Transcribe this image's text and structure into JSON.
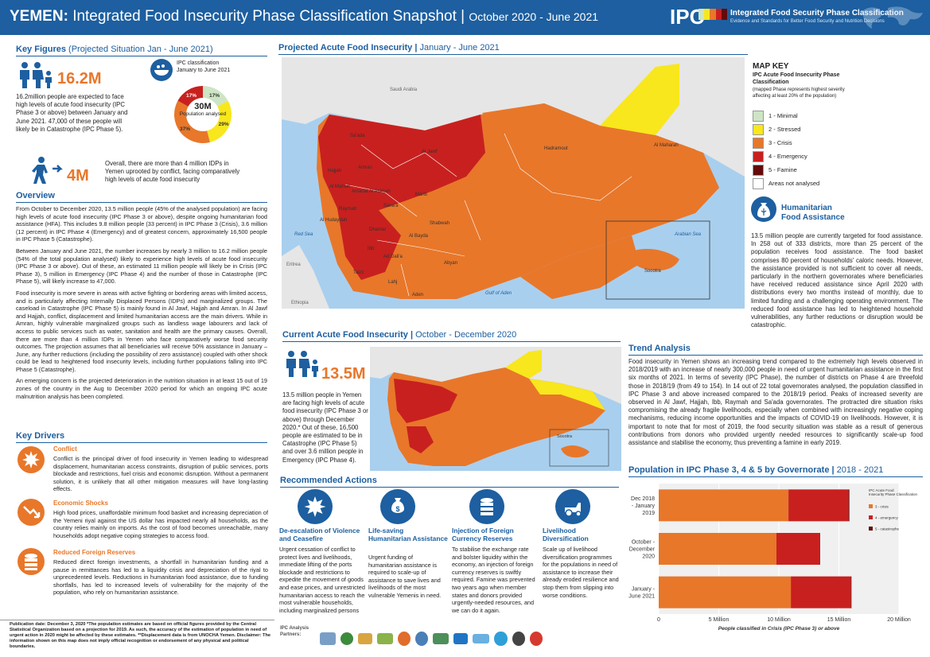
{
  "header": {
    "country": "YEMEN:",
    "title": "Integrated Food Insecurity Phase Classification Snapshot",
    "period": "October 2020 - June 2021",
    "ipc_logo": "IPC",
    "ipc_name": "Integrated Food Security Phase Classification",
    "ipc_tagline": "Evidence and Standards for Better Food Security and Nutrition Decisions"
  },
  "key_figures": {
    "heading": "Key Figures",
    "heading_sub": "(Projected Situation Jan - June 2021)",
    "people_icon": "people-family-icon",
    "people_number": "16.2M",
    "people_text": "16.2million people are expected to face high levels of acute food insecurity (IPC Phase 3 or above) between January and June 2021. 47,000 of these people will likely be in Catastrophe (IPC Phase 5).",
    "donut_caption": "IPC classification January to June 2021",
    "donut_center_value": "30M",
    "donut_center_label": "Population analysed",
    "donut": [
      {
        "label": "17%",
        "value": 17,
        "color": "#cde5c4"
      },
      {
        "label": "29%",
        "value": 29,
        "color": "#f8e71c"
      },
      {
        "label": "37%",
        "value": 37,
        "color": "#e8772a"
      },
      {
        "label": "17%",
        "value": 17,
        "color": "#c8201f"
      }
    ],
    "idp_icon": "displaced-person-icon",
    "idp_number": "4M",
    "idp_text": "Overall, there are more than 4 million IDPs in Yemen uprooted by conflict, facing comparatively high levels of acute food insecurity"
  },
  "overview": {
    "heading": "Overview",
    "p1": "From October to December 2020, 13.5 million people (45% of the analysed population) are facing high levels of acute food insecurity (IPC Phase 3 or above), despite ongoing humanitarian food assistance (HFA). This includes 9.8 million people (33 percent) in IPC Phase 3 (Crisis), 3.6 million (12 percent) in IPC Phase 4 (Emergency) and of greatest concern, approximately 16,500 people in IPC Phase 5 (Catastrophe).",
    "p2": "Between January and June 2021, the number increases by nearly 3 million to 16.2 million people (54% of the total population analysed) likely to experience high levels of acute food insecurity (IPC Phase 3 or above). Out of these, an estimated 11 million people will likely be in Crisis (IPC Phase 3), 5 million in Emergency (IPC Phase 4) and the number of those in Catastrophe (IPC Phase 5), will likely increase to 47,000.",
    "p3": "Food insecurity is more severe in areas with active fighting or bordering areas with limited access, and is particularly affecting Internally Displaced Persons (IDPs) and marginalized groups. The caseload in Catastrophe (IPC Phase 5) is mainly found in Al Jawf, Hajjah and Amran. In Al Jawf and Hajjah, conflict, displacement and limited humanitarian access are the main drivers. While in Amran, highly vulnerable marginalized groups such as landless wage labourers and lack of access to public services such as water, sanitation and health are the primary causes. Overall, there are more than 4 million IDPs in Yemen who face comparatively worse food security outcomes. The projection assumes that all beneficiaries will receive 50% assistance in January – June, any further reductions (including the possibility of zero assistance) coupled with other shock could be lead to heightened food insecurity levels, including further populations falling into IPC Phase 5 (Catastrophe).",
    "p4": "An emerging concern is the projected deterioration in the nutrition situation in at least 15 out of 19 zones of the country in the Aug to December 2020 period for which an ongoing IPC acute malnutrition analysis has been completed."
  },
  "drivers": {
    "heading": "Key Drivers",
    "items": [
      {
        "title": "Conflict",
        "icon": "explosion-icon",
        "text": "Conflict is the principal driver of food insecurity in Yemen leading to widespread displacement, humanitarian access constraints, disruption of public services, ports blockade and restrictions, fuel crisis and economic disruption. Without a permanent solution, it is unlikely that all other mitigation measures will have long-lasting effects."
      },
      {
        "title": "Economic Shocks",
        "icon": "trend-down-icon",
        "text": "High food prices, unaffordable minimum food basket and increasing depreciation of the Yemeni riyal against the US dollar has impacted nearly all households, as the country relies mainly on imports. As the cost of food becomes unreachable, many households adopt negative coping strategies to access food."
      },
      {
        "title": "Reduced Foreign Reserves",
        "icon": "coin-stack-icon",
        "text": "Reduced direct foreign investments, a shortfall in humanitarian funding and a pause in remittances has led to a liquidity crisis and depreciation of the riyal to unprecedented levels. Reductions in humanitarian food assistance, due to funding shortfalls, has led to increased levels of vulnerability for the majority of the population, who rely on humanitarian assistance."
      }
    ]
  },
  "footer": {
    "note": "Publication date: December 3, 2020 *The population estimates are based on official figures provided by the Central Statistical Organization based on a projection for 2019. As such, the accuracy of the estimation of population in need of urgent action in 2020 might be affected by these estimates. **Displacement data is from UNOCHA Yemen. Disclaimer: The information shown on this map does not imply official recognition or endorsement of any physical and political boundaries.",
    "partners_label": "IPC Analysis Partners:"
  },
  "projected_map": {
    "heading": "Projected Acute Food Insecurity",
    "heading_sub": "January - June 2021",
    "labels": [
      "Saudi Arabia",
      "Al Jawf",
      "Hadramout",
      "Al Maharah",
      "Sa'ada",
      "Hajjah",
      "Amran",
      "Al Mahwit",
      "Amanat Al Asimah",
      "Sana'a",
      "Marib",
      "Al Hudaydah",
      "Raymah",
      "Dhamar",
      "Al Bayda",
      "Shabwah",
      "Ibb",
      "Ad Dali'a",
      "Abyan",
      "Taizz",
      "Lahj",
      "Aden",
      "Red Sea",
      "Gulf of Aden",
      "Arabian Sea",
      "Socotra",
      "Eritrea",
      "Ethiopia"
    ]
  },
  "map_key": {
    "heading": "MAP KEY",
    "subheading": "IPC Acute Food Insecurity Phase Classification",
    "note": "(mapped Phase represents highest severity affecting at least 20% of the population)",
    "phases": [
      {
        "label": "1 - Minimal",
        "color": "#cde5c4"
      },
      {
        "label": "2 - Stressed",
        "color": "#f8e71c"
      },
      {
        "label": "3 - Crisis",
        "color": "#e8772a"
      },
      {
        "label": "4 - Emergency",
        "color": "#c8201f"
      },
      {
        "label": "5 - Famine",
        "color": "#640a0a"
      },
      {
        "label": "Areas not analysed",
        "color": "#ffffff"
      }
    ]
  },
  "hfa": {
    "icon": "food-sack-icon",
    "title_line1": "Humanitarian",
    "title_line2": "Food Assistance",
    "text": "13.5 million people are currently targeted for food assistance. In 258 out of 333 districts, more than 25 percent of the population receives food assistance. The food basket comprises 80 percent of households' caloric needs. However, the assistance provided is not sufficient to cover all needs, particularly in the northern governorates where beneficiaries have received reduced assistance since April 2020 with distributions every two months instead of monthly, due to limited funding and a challenging operating environment. The reduced food assistance has led to heightened household vulnerabilities, any further reductions or disruption would be catastrophic."
  },
  "current": {
    "heading": "Current Acute Food Insecurity",
    "heading_sub": "October - December 2020",
    "people_icon": "people-family-icon",
    "number": "13.5M",
    "text": "13.5 million people in Yemen are facing high levels of acute food insecurity (IPC Phase 3 or above) through December 2020.* Out of these, 16,500 people are estimated to be in Catastrophe (IPC Phase 5) and over 3.6 million people in Emergency (IPC Phase 4).",
    "socotra": "Socotra"
  },
  "trend": {
    "heading": "Trend Analysis",
    "text": "Food insecurity in Yemen shows an increasing trend compared to the extremely high levels observed in 2018/2019 with an increase of nearly 300,000 people in need of urgent humanitarian assistance in the first six months of 2021. In terms of severity (IPC Phase), the number of districts on Phase 4 are threefold those in 2018/19 (from 49 to 154). In 14 out of 22 total governorates analysed, the population classified in IPC Phase 3 and above increased compared to the 2018/19 period. Peaks of increased severity are observed in Al Jawf, Hajjah, Ibb, Raymah and Sa'ada governorates. The protracted dire situation risks compromising the already fragile livelihoods, especially when combined with increasingly negative coping mechanisms, reducing income opportunities and the impacts of COVID-19 on livelihoods. However, it is important to note that for most of 2019, the food security situation was stable as a result of generous contributions from donors who provided urgently needed resources to significantly scale-up food assistance and stabilise the economy, thus preventing a famine in early 2019."
  },
  "recommended": {
    "heading": "Recommended Actions",
    "items": [
      {
        "icon": "dove-peace-icon",
        "title": "De-escalation of Violence and Ceasefire",
        "text": "Urgent cessation of conflict to protect lives and livelihoods, immediate lifting of the ports blockade and restrictions to expedite the movement of goods and ease prices, and unrestricted humanitarian access to reach the most vulnerable households, including marginalized persons"
      },
      {
        "icon": "money-bag-hand-icon",
        "title": "Life-saving Humanitarian Assistance",
        "text": "Urgent funding of humanitarian assistance is required to scale-up of assistance to save lives and livelihoods of the most vulnerable Yemenis in need."
      },
      {
        "icon": "coin-stack-icon",
        "title": "Injection of Foreign Currency Reserves",
        "text": "To stabilise the exchange rate and bolster liquidity within the economy, an injection of foreign currency reserves is swiftly required. Famine was prevented two years ago when member states and donors provided urgently-needed resources, and we can do it again."
      },
      {
        "icon": "tractor-icon",
        "title": "Livelihood Diversification",
        "text": "Scale up of livelihood diversification programmes for the populations in need of assistance to increase their already eroded resilience and stop them from slipping into worse conditions."
      }
    ]
  },
  "bar_chart": {
    "heading": "Population in IPC Phase 3, 4 & 5 by Governorate",
    "heading_sub": "2018 - 2021"
  },
  "chart_data": {
    "type": "bar",
    "orientation": "horizontal",
    "stacked": true,
    "categories": [
      "Dec 2018 - January 2019",
      "October - December 2020",
      "January - June 2021"
    ],
    "series": [
      {
        "name": "3 - crisis",
        "color": "#e8772a",
        "values": [
          10.8,
          9.8,
          11.0
        ]
      },
      {
        "name": "4 - emergency",
        "color": "#c8201f",
        "values": [
          5.0,
          3.6,
          5.0
        ]
      },
      {
        "name": "5 - catastrophe",
        "color": "#640a0a",
        "values": [
          0.07,
          0.0165,
          0.047
        ]
      }
    ],
    "xticks": [
      "0",
      "5 Million",
      "10 Million",
      "15 Million",
      "20 Million"
    ],
    "xlim": [
      0,
      20
    ],
    "xlabel": "People classified in Crisis (IPC Phase 3) or above",
    "legend_title": "IPC Acute Food Insecurity Phase Classification",
    "legend_position": "right"
  }
}
